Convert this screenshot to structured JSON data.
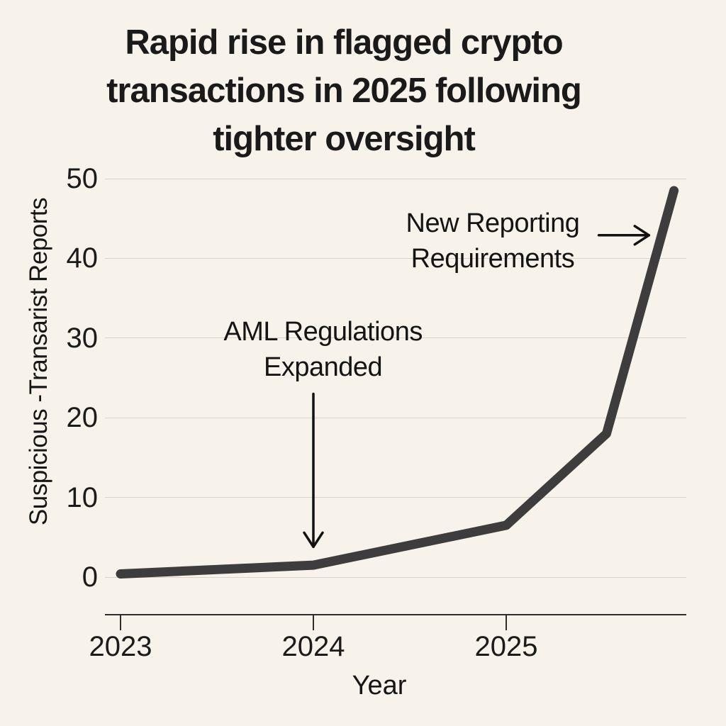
{
  "title_lines": [
    "Rapid rise in flagged crypto",
    "transactions in 2025 following",
    "tighter oversight"
  ],
  "chart_data": {
    "type": "line",
    "title": "Rapid rise in flagged crypto transactions in 2025 following tighter oversight",
    "xlabel": "Year",
    "ylabel": "Suspicious -Transarist Reports",
    "x": [
      2023,
      2024,
      2025,
      2025.52,
      2025.87
    ],
    "values": [
      0.4,
      1.5,
      6.5,
      18,
      48.5
    ],
    "x_ticks": [
      2023,
      2024,
      2025
    ],
    "y_ticks": [
      0,
      10,
      20,
      30,
      40,
      50
    ],
    "ylim": [
      0,
      50
    ],
    "grid": "horizontal",
    "legend": "none",
    "line_color": "#3d3d3d",
    "annotations": [
      {
        "lines": [
          "AML Regulations",
          "Expanded"
        ],
        "center": {
          "x": 2024.05,
          "y": 28.6
        },
        "arrow": {
          "x_from": 2024.0,
          "y_from": 23.0,
          "x_to": 2024.0,
          "y_to": 3.8,
          "direction": "down"
        }
      },
      {
        "lines": [
          "New Reporting",
          "Requirements"
        ],
        "center": {
          "x": 2024.93,
          "y": 42.2
        },
        "arrow": {
          "x_from": 2025.48,
          "y_from": 42.9,
          "x_to": 2025.74,
          "y_to": 42.9,
          "direction": "right"
        }
      }
    ]
  },
  "colors": {
    "background": "#f7f3eb",
    "line": "#3d3d3d",
    "gridline": "#d8d4cb",
    "axis": "#2e2e2e",
    "text": "#1a1a1a",
    "arrow": "#121212"
  }
}
